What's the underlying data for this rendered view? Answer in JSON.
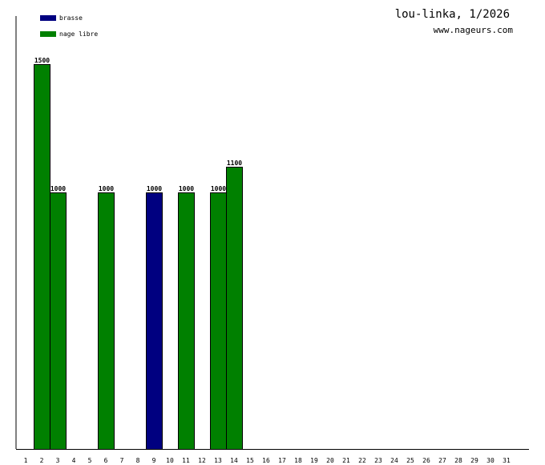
{
  "chart_data": {
    "type": "bar",
    "title": "lou-linka, 1/2026",
    "subtitle": "www.nageurs.com",
    "categories": [
      "1",
      "2",
      "3",
      "4",
      "5",
      "6",
      "7",
      "8",
      "9",
      "10",
      "11",
      "12",
      "13",
      "14",
      "15",
      "16",
      "17",
      "18",
      "19",
      "20",
      "21",
      "22",
      "23",
      "24",
      "25",
      "26",
      "27",
      "28",
      "29",
      "30",
      "31"
    ],
    "series": [
      {
        "name": "brasse",
        "color": "#000080",
        "points": [
          {
            "x": "9",
            "value": 1000
          }
        ]
      },
      {
        "name": "nage libre",
        "color": "#008000",
        "points": [
          {
            "x": "2",
            "value": 1500
          },
          {
            "x": "3",
            "value": 1000
          },
          {
            "x": "6",
            "value": 1000
          },
          {
            "x": "11",
            "value": 1000
          },
          {
            "x": "13",
            "value": 1000
          },
          {
            "x": "14",
            "value": 1100
          }
        ]
      }
    ],
    "ylim": [
      0,
      1500
    ],
    "grid": false,
    "legend_position": "top-left"
  }
}
